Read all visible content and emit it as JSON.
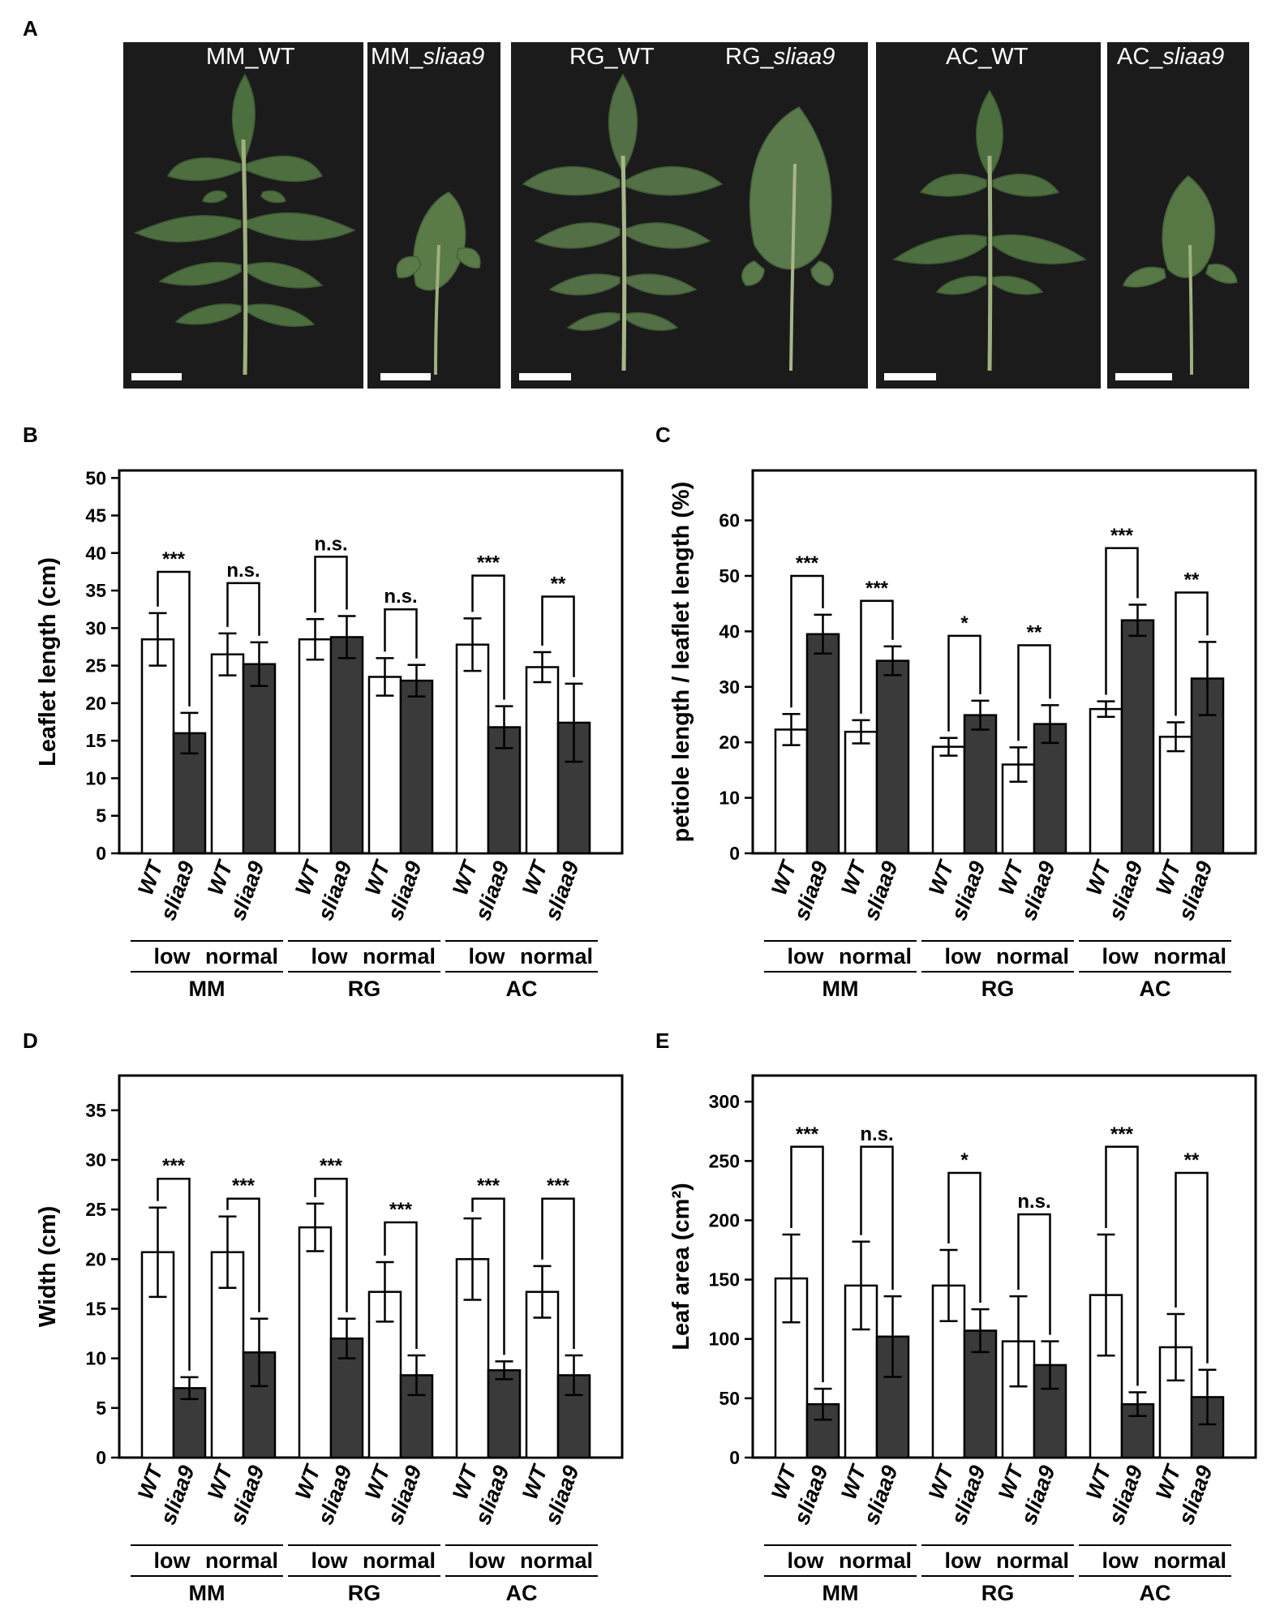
{
  "panel_labels": [
    "A",
    "B",
    "C",
    "D",
    "E"
  ],
  "photo_panel": {
    "photos": [
      {
        "title_main": "MM_WT",
        "title_italic": ""
      },
      {
        "title_main": "MM_",
        "title_italic": "sliaa9"
      },
      {
        "title_main": "RG_WT",
        "title_italic": ""
      },
      {
        "title_main": "RG_",
        "title_italic": "sliaa9"
      },
      {
        "title_main": "AC_WT",
        "title_italic": ""
      },
      {
        "title_main": "AC_",
        "title_italic": "sliaa9"
      }
    ]
  },
  "colors": {
    "wt_bar": "#ffffff",
    "mutant_bar": "#3a3a3a",
    "leaf": "#4d6f3f",
    "photo_bg": "#1b1b1c"
  },
  "chart_data": [
    {
      "type": "bar",
      "panel": "B",
      "ylabel": "Leaflet length (cm)",
      "ylim": [
        0,
        51
      ],
      "yticks": [
        0,
        5,
        10,
        15,
        20,
        25,
        30,
        35,
        40,
        45,
        50
      ],
      "genotypes": [
        "WT",
        "sliaa9"
      ],
      "conditions": [
        "low",
        "normal",
        "low",
        "normal",
        "low",
        "normal"
      ],
      "strains": [
        "MM",
        "RG",
        "AC"
      ],
      "series": [
        {
          "values": [
            28.5,
            26.5,
            28.5,
            23.5,
            27.8,
            24.8
          ],
          "errors": [
            3.5,
            2.8,
            2.7,
            2.5,
            3.5,
            2.0
          ]
        },
        {
          "values": [
            16.0,
            25.2,
            28.8,
            23.0,
            16.8,
            17.4
          ],
          "errors": [
            2.7,
            2.9,
            2.8,
            2.1,
            2.8,
            5.2
          ]
        }
      ],
      "significance": [
        {
          "label": "***",
          "bracket_top": 37.5
        },
        {
          "label": "n.s.",
          "bracket_top": 36.0
        },
        {
          "label": "n.s.",
          "bracket_top": 39.5
        },
        {
          "label": "n.s.",
          "bracket_top": 32.5
        },
        {
          "label": "***",
          "bracket_top": 37.0
        },
        {
          "label": "**",
          "bracket_top": 34.2
        }
      ]
    },
    {
      "type": "bar",
      "panel": "C",
      "ylabel": "petiole length / leaflet length (%)",
      "ylim": [
        0,
        69
      ],
      "yticks": [
        0,
        10,
        20,
        30,
        40,
        50,
        60
      ],
      "genotypes": [
        "WT",
        "sliaa9"
      ],
      "conditions": [
        "low",
        "normal",
        "low",
        "normal",
        "low",
        "normal"
      ],
      "strains": [
        "MM",
        "RG",
        "AC"
      ],
      "series": [
        {
          "values": [
            22.3,
            21.9,
            19.2,
            16.0,
            26.0,
            21.0
          ],
          "errors": [
            2.8,
            2.1,
            1.6,
            3.1,
            1.4,
            2.6
          ]
        },
        {
          "values": [
            39.5,
            34.7,
            24.9,
            23.3,
            42.0,
            31.5
          ],
          "errors": [
            3.5,
            2.6,
            2.6,
            3.4,
            2.8,
            6.6
          ]
        }
      ],
      "significance": [
        {
          "label": "***",
          "bracket_top": 50.0
        },
        {
          "label": "***",
          "bracket_top": 45.5
        },
        {
          "label": "*",
          "bracket_top": 39.2
        },
        {
          "label": "**",
          "bracket_top": 37.5
        },
        {
          "label": "***",
          "bracket_top": 55.0
        },
        {
          "label": "**",
          "bracket_top": 47.0
        }
      ]
    },
    {
      "type": "bar",
      "panel": "D",
      "ylabel": "Width (cm)",
      "ylim": [
        0,
        38.5
      ],
      "yticks": [
        0,
        5,
        10,
        15,
        20,
        25,
        30,
        35
      ],
      "genotypes": [
        "WT",
        "sliaa9"
      ],
      "conditions": [
        "low",
        "normal",
        "low",
        "normal",
        "low",
        "normal"
      ],
      "strains": [
        "MM",
        "RG",
        "AC"
      ],
      "series": [
        {
          "values": [
            20.7,
            20.7,
            23.2,
            16.7,
            20.0,
            16.7
          ],
          "errors": [
            4.5,
            3.6,
            2.4,
            3.0,
            4.1,
            2.6
          ]
        },
        {
          "values": [
            7.0,
            10.6,
            12.0,
            8.3,
            8.8,
            8.3
          ],
          "errors": [
            1.1,
            3.4,
            2.0,
            2.0,
            0.9,
            2.0
          ]
        }
      ],
      "significance": [
        {
          "label": "***",
          "bracket_top": 28.1
        },
        {
          "label": "***",
          "bracket_top": 26.1
        },
        {
          "label": "***",
          "bracket_top": 28.1
        },
        {
          "label": "***",
          "bracket_top": 23.7
        },
        {
          "label": "***",
          "bracket_top": 26.1
        },
        {
          "label": "***",
          "bracket_top": 26.1
        }
      ]
    },
    {
      "type": "bar",
      "panel": "E",
      "ylabel": "Leaf area (cm²)",
      "ylim": [
        0,
        322
      ],
      "yticks": [
        0,
        50,
        100,
        150,
        200,
        250,
        300
      ],
      "genotypes": [
        "WT",
        "sliaa9"
      ],
      "conditions": [
        "low",
        "normal",
        "low",
        "normal",
        "low",
        "normal"
      ],
      "strains": [
        "MM",
        "RG",
        "AC"
      ],
      "series": [
        {
          "values": [
            151,
            145,
            145,
            98,
            137,
            93
          ],
          "errors": [
            37,
            37,
            30,
            38,
            51,
            28
          ]
        },
        {
          "values": [
            45,
            102,
            107,
            78,
            45,
            51
          ],
          "errors": [
            13,
            34,
            18,
            20,
            10,
            23
          ]
        }
      ],
      "significance": [
        {
          "label": "***",
          "bracket_top": 262
        },
        {
          "label": "n.s.",
          "bracket_top": 262
        },
        {
          "label": "*",
          "bracket_top": 240
        },
        {
          "label": "n.s.",
          "bracket_top": 205
        },
        {
          "label": "***",
          "bracket_top": 262
        },
        {
          "label": "**",
          "bracket_top": 240
        }
      ]
    }
  ]
}
